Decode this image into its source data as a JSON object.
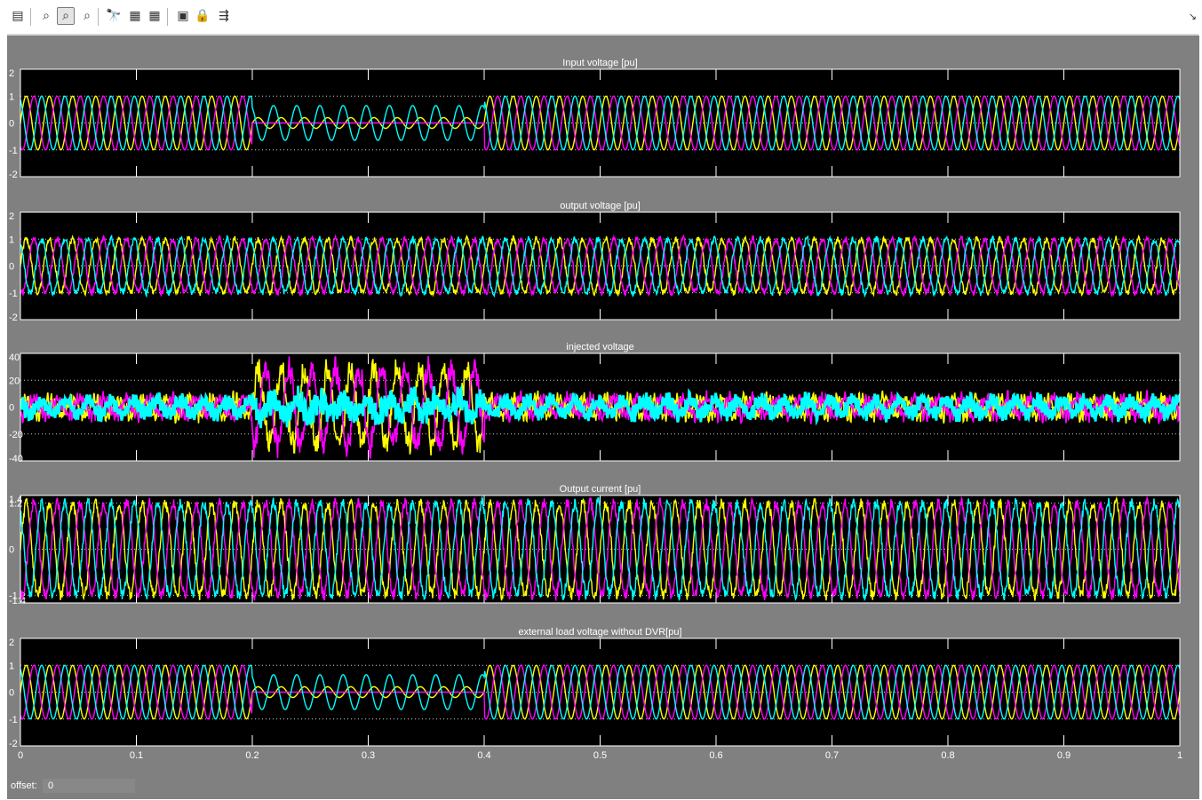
{
  "toolbar": {
    "buttons": [
      {
        "name": "parameters-icon",
        "glyph": "▤"
      },
      {
        "name": "zoom-icon",
        "glyph": "⌕"
      },
      {
        "name": "zoom-x-icon",
        "glyph": "⌕",
        "active": true
      },
      {
        "name": "zoom-y-icon",
        "glyph": "⌕"
      },
      {
        "name": "autoscale-icon",
        "glyph": "🔭"
      },
      {
        "name": "save-axes-icon",
        "glyph": "▦"
      },
      {
        "name": "restore-axes-icon",
        "glyph": "▦"
      },
      {
        "name": "floating-scope-icon",
        "glyph": "▣"
      },
      {
        "name": "lock-axes-icon",
        "glyph": "🔒"
      },
      {
        "name": "signal-selection-icon",
        "glyph": "⇶"
      }
    ],
    "dock_arrow": "↘"
  },
  "offset_label": "offset:",
  "offset_value": "0",
  "colors": {
    "figure_bg": "#808080",
    "axes_bg": "#000000",
    "tick_text": "#ffffff",
    "phase_a": "#ffff00",
    "phase_b": "#ff00ff",
    "phase_c": "#00ffff"
  },
  "chart_data": [
    {
      "type": "line",
      "title": "Input voltage [pu]",
      "x_range": [
        0,
        1
      ],
      "ylim": [
        -2,
        2
      ],
      "y_ticks": [
        2,
        1,
        0,
        -1,
        -2
      ],
      "y_tick_labels": [
        "2",
        "1",
        "0",
        "-1",
        "-2"
      ],
      "grid": true,
      "frequency_hz": 50,
      "series": [
        {
          "color": "#ffff00",
          "phase_deg": 0,
          "amplitude": 1.0
        },
        {
          "color": "#ff00ff",
          "phase_deg": -120,
          "amplitude": 1.0
        },
        {
          "color": "#00ffff",
          "phase_deg": 120,
          "amplitude": 1.0
        }
      ],
      "events": [
        {
          "t_start": 0.2,
          "t_end": 0.4,
          "phase_amplitudes": [
            0.2,
            0.0,
            0.65
          ],
          "description_shown_by_shape": "sag"
        }
      ]
    },
    {
      "type": "line",
      "title": "output voltage [pu]",
      "x_range": [
        0,
        1
      ],
      "ylim": [
        -2,
        2
      ],
      "y_ticks": [
        2,
        1,
        0,
        -1,
        -2
      ],
      "y_tick_labels": [
        "2",
        "1",
        "0",
        "-1",
        "-2"
      ],
      "grid": true,
      "frequency_hz": 50,
      "series": [
        {
          "color": "#ffff00",
          "phase_deg": 0,
          "amplitude": 1.0
        },
        {
          "color": "#ff00ff",
          "phase_deg": -120,
          "amplitude": 1.0
        },
        {
          "color": "#00ffff",
          "phase_deg": 120,
          "amplitude": 1.0
        }
      ],
      "noise": 0.12
    },
    {
      "type": "line",
      "title": "injected voltage",
      "x_range": [
        0,
        1
      ],
      "ylim": [
        -40,
        40
      ],
      "y_ticks": [
        40,
        20,
        0,
        -20,
        -40
      ],
      "y_tick_labels": [
        "40",
        "20",
        "0",
        "-20",
        "-40"
      ],
      "grid": true,
      "frequency_hz": 50,
      "series": [
        {
          "color": "#ffff00",
          "phase_deg": 0,
          "amplitude": 6
        },
        {
          "color": "#ff00ff",
          "phase_deg": -120,
          "amplitude": 6
        },
        {
          "color": "#00ffff",
          "phase_deg": 120,
          "amplitude": 5
        }
      ],
      "events": [
        {
          "t_start": 0.2,
          "t_end": 0.4,
          "phase_amplitudes": [
            28,
            28,
            6
          ]
        }
      ],
      "noise": 4
    },
    {
      "type": "line",
      "title": "Output current [pu]",
      "x_range": [
        0,
        1
      ],
      "ylim": [
        -1.4,
        1.4
      ],
      "y_ticks": [
        1.4,
        1.2,
        0,
        -1.2,
        -1.4
      ],
      "y_tick_labels": [
        "1.4",
        "1.2",
        "0",
        "-1.2",
        "-1.4"
      ],
      "grid": true,
      "frequency_hz": 50,
      "series": [
        {
          "color": "#ffff00",
          "phase_deg": 0,
          "amplitude": 1.2
        },
        {
          "color": "#ff00ff",
          "phase_deg": -120,
          "amplitude": 1.2
        },
        {
          "color": "#00ffff",
          "phase_deg": 120,
          "amplitude": 1.2
        }
      ],
      "noise": 0.12
    },
    {
      "type": "line",
      "title": "external load voltage without DVR[pu]",
      "x_range": [
        0,
        1
      ],
      "ylim": [
        -2,
        2
      ],
      "y_ticks": [
        2,
        1,
        0,
        -1,
        -2
      ],
      "y_tick_labels": [
        "2",
        "1",
        "0",
        "-1",
        "-2"
      ],
      "grid": true,
      "frequency_hz": 50,
      "series": [
        {
          "color": "#ffff00",
          "phase_deg": 0,
          "amplitude": 1.0
        },
        {
          "color": "#ff00ff",
          "phase_deg": -120,
          "amplitude": 1.0
        },
        {
          "color": "#00ffff",
          "phase_deg": 120,
          "amplitude": 1.0
        }
      ],
      "events": [
        {
          "t_start": 0.2,
          "t_end": 0.4,
          "phase_amplitudes": [
            0.2,
            0.0,
            0.65
          ]
        }
      ]
    }
  ],
  "x_ticks": [
    0,
    0.1,
    0.2,
    0.3,
    0.4,
    0.5,
    0.6,
    0.7,
    0.8,
    0.9,
    1
  ],
  "x_tick_labels": [
    "0",
    "0.1",
    "0.2",
    "0.3",
    "0.4",
    "0.5",
    "0.6",
    "0.7",
    "0.8",
    "0.9",
    "1"
  ]
}
